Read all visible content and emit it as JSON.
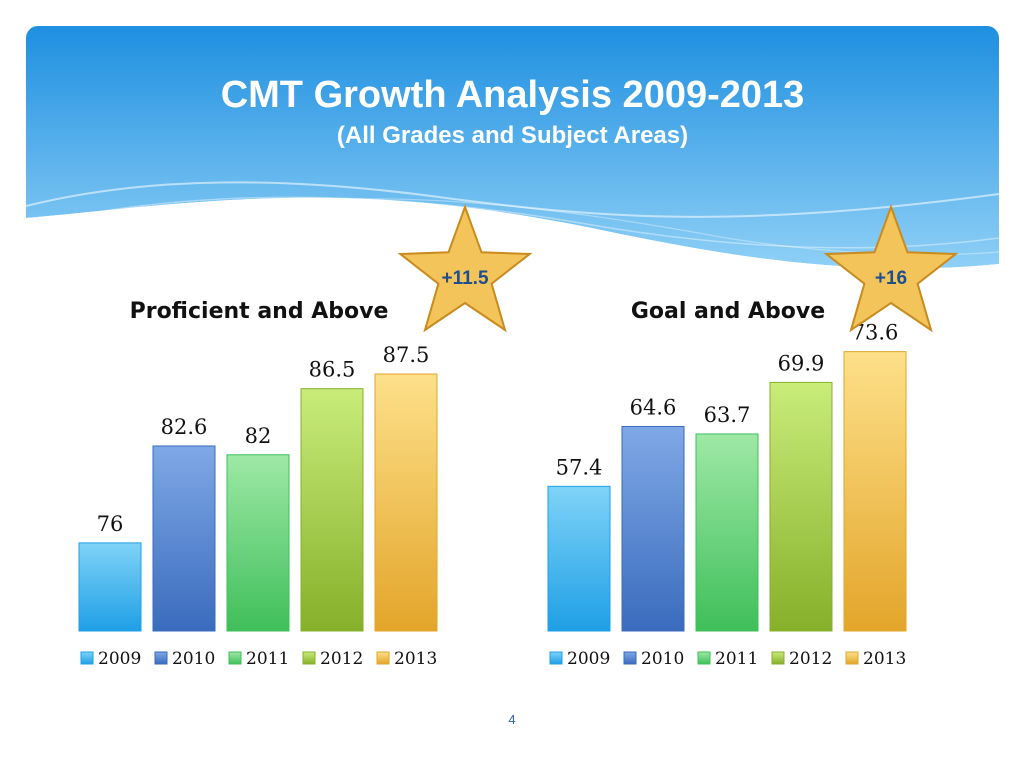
{
  "slide": {
    "title": "CMT Growth Analysis 2009-2013",
    "subtitle": "(All Grades and Subject Areas)",
    "page_number": "4"
  },
  "colors": {
    "header_top": "#1e8fe0",
    "header_bottom": "#9fd8f8",
    "star_fill": "#f2c45a",
    "star_stroke": "#c98a1e",
    "star_text": "#1f4e8c",
    "series": {
      "2009": [
        "#7fd3f7",
        "#1f9fe6"
      ],
      "2010": [
        "#7fa8e6",
        "#3a6bbd"
      ],
      "2011": [
        "#9ee8a6",
        "#3fbf5a"
      ],
      "2012": [
        "#c9ec7a",
        "#86b02a"
      ],
      "2013": [
        "#fde08a",
        "#e3a52a"
      ]
    }
  },
  "chart_data": [
    {
      "type": "bar",
      "title": "Proficient and Above",
      "categories": [
        "2009",
        "2010",
        "2011",
        "2012",
        "2013"
      ],
      "values": [
        76,
        82.6,
        82,
        86.5,
        87.5
      ],
      "ylim": [
        70,
        89
      ],
      "legend": [
        "2009",
        "2010",
        "2011",
        "2012",
        "2013"
      ],
      "legend_position": "bottom",
      "grid": false,
      "badge": "+11.5"
    },
    {
      "type": "bar",
      "title": "Goal and Above",
      "categories": [
        "2009",
        "2010",
        "2011",
        "2012",
        "2013"
      ],
      "values": [
        57.4,
        64.6,
        63.7,
        69.9,
        73.6
      ],
      "ylim": [
        40,
        75
      ],
      "legend": [
        "2009",
        "2010",
        "2011",
        "2012",
        "2013"
      ],
      "legend_position": "bottom",
      "grid": false,
      "badge": "+16"
    }
  ]
}
